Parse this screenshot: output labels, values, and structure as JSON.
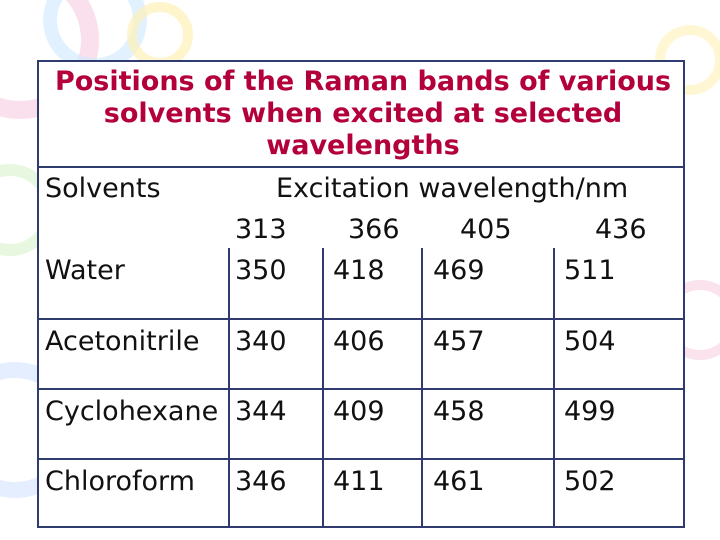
{
  "title": "Positions of the Raman bands of various solvents when excited at selected wavelengths",
  "header": {
    "solvents_label": "Solvents",
    "excitation_label": "Excitation wavelength/nm",
    "wavelengths": [
      "313",
      "366",
      "405",
      "436"
    ]
  },
  "rows": [
    {
      "solvent": "Water",
      "values": [
        "350",
        "418",
        "469",
        "511"
      ]
    },
    {
      "solvent": "Acetonitrile",
      "values": [
        "340",
        "406",
        "457",
        "504"
      ]
    },
    {
      "solvent": "Cyclohexane",
      "values": [
        "344",
        "409",
        "458",
        "499"
      ]
    },
    {
      "solvent": "Chloroform",
      "values": [
        "346",
        "411",
        "461",
        "502"
      ]
    }
  ],
  "colors": {
    "title": "#b3003b",
    "border": "#2f3b6e",
    "text": "#111111"
  }
}
